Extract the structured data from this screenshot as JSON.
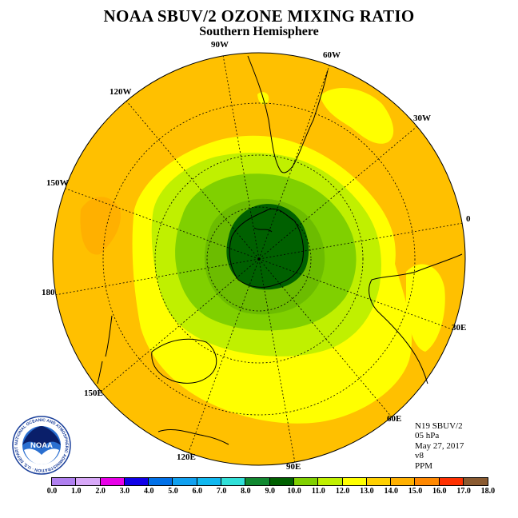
{
  "title": "NOAA SBUV/2 OZONE MIXING RATIO",
  "subtitle": "Southern Hemisphere",
  "longitude_labels": {
    "w90": "90W",
    "w60": "60W",
    "w120": "120W",
    "w30": "30W",
    "w150": "150W",
    "e0": "0",
    "e180": "180",
    "e30": "30E",
    "e150": "150E",
    "e60": "60E",
    "e120": "120E",
    "e90": "90E"
  },
  "info": {
    "satellite": "N19 SBUV/2",
    "pressure": "05 hPa",
    "date": "May 27, 2017",
    "version": "v8",
    "units": "PPM"
  },
  "logo": {
    "text": "NOAA",
    "ring_text": "NATIONAL OCEANIC AND ATMOSPHERIC ADMINISTRATION · U.S. DEPARTMENT OF COMMERCE"
  },
  "colorbar": {
    "ticks": [
      "0.0",
      "1.0",
      "2.0",
      "3.0",
      "4.0",
      "5.0",
      "6.0",
      "7.0",
      "8.0",
      "9.0",
      "10.0",
      "11.0",
      "12.0",
      "13.0",
      "14.0",
      "15.0",
      "16.0",
      "17.0",
      "18.0"
    ],
    "colors": [
      "#b080f0",
      "#d8a8f8",
      "#e800e8",
      "#1000e8",
      "#0070e8",
      "#10a0f0",
      "#10b8f0",
      "#30e0d8",
      "#108830",
      "#006000",
      "#80d000",
      "#c0f000",
      "#ffff00",
      "#ffd000",
      "#ffb000",
      "#ff8800",
      "#ff3000",
      "#8a5a30"
    ]
  }
}
